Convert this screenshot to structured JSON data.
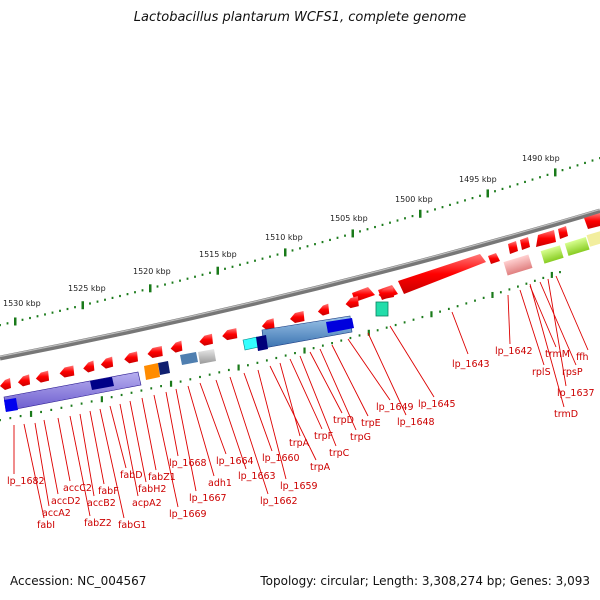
{
  "title": "Lactobacillus plantarum WCFS1, complete genome",
  "footer": {
    "accession": "Accession: NC_004567",
    "topology": "Topology: circular; Length: 3,308,274 bp; Genes: 3,093"
  },
  "scale_labels": [
    "1490 kbp",
    "1495 kbp",
    "1500 kbp",
    "1505 kbp",
    "1510 kbp",
    "1515 kbp",
    "1520 kbp",
    "1525 kbp",
    "1530 kbp"
  ],
  "gene_labels": [
    "lp_1682",
    "fabI",
    "accA2",
    "accD2",
    "accC2",
    "fabZ2",
    "accB2",
    "fabF",
    "fabG1",
    "fabD",
    "acpA2",
    "fabH2",
    "fabZ1",
    "lp_1669",
    "lp_1668",
    "lp_1667",
    "adh1",
    "lp_1664",
    "lp_1663",
    "lp_1662",
    "lp_1660",
    "lp_1659",
    "trpA",
    "trpA",
    "trpF",
    "trpC",
    "trpD",
    "trpG",
    "trpE",
    "lp_1649",
    "lp_1648",
    "lp_1645",
    "lp_1643",
    "lp_1642",
    "rplS",
    "trmM",
    "rpsP",
    "ffh",
    "lp_1637",
    "trmD"
  ],
  "colors": {
    "gene_red": "#ee0000",
    "label_red": "#cc0000",
    "backbone": "#777777",
    "ticks": "#1a7a1a"
  }
}
